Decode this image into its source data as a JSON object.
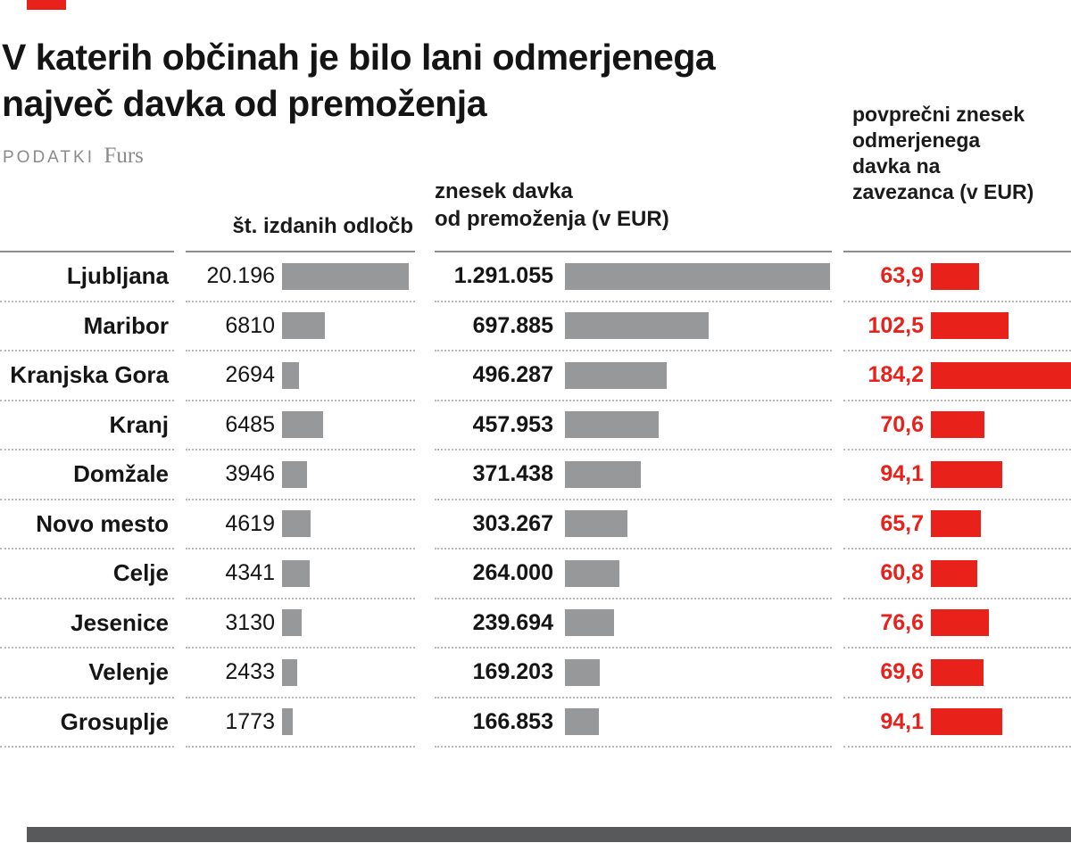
{
  "title_line1": "V katerih občinah je bilo lani odmerjenega",
  "title_line2": "največ davka od premoženja",
  "source": {
    "label": "PODATKI",
    "name": "Furs"
  },
  "headers": {
    "decisions": "št. izdanih odločb",
    "tax_line1": "znesek davka",
    "tax_line2": "od premoženja (v EUR)",
    "avg_lines": [
      "povprečni znesek",
      "odmerjenega",
      "davka na",
      "zavezanca (v EUR)"
    ]
  },
  "colors": {
    "accent_red": "#e8211a",
    "bar_gray": "#96989a",
    "footer_gray": "#58595b"
  },
  "chart_data": {
    "type": "bar",
    "title": "V katerih občinah je bilo lani odmerjenega največ davka od premoženja",
    "source": "PODATKI Furs",
    "columns": [
      "občina",
      "št. izdanih odločb",
      "znesek davka od premoženja (v EUR)",
      "povprečni znesek odmerjenega davka na zavezanca (v EUR)"
    ],
    "rows": [
      {
        "municipality": "Ljubljana",
        "decisions_label": "20.196",
        "decisions": 20196,
        "tax_label": "1.291.055",
        "tax": 1291055,
        "avg_label": "63,9",
        "avg": 63.9
      },
      {
        "municipality": "Maribor",
        "decisions_label": "6810",
        "decisions": 6810,
        "tax_label": "697.885",
        "tax": 697885,
        "avg_label": "102,5",
        "avg": 102.5
      },
      {
        "municipality": "Kranjska Gora",
        "decisions_label": "2694",
        "decisions": 2694,
        "tax_label": "496.287",
        "tax": 496287,
        "avg_label": "184,2",
        "avg": 184.2
      },
      {
        "municipality": "Kranj",
        "decisions_label": "6485",
        "decisions": 6485,
        "tax_label": "457.953",
        "tax": 457953,
        "avg_label": "70,6",
        "avg": 70.6
      },
      {
        "municipality": "Domžale",
        "decisions_label": "3946",
        "decisions": 3946,
        "tax_label": "371.438",
        "tax": 371438,
        "avg_label": "94,1",
        "avg": 94.1
      },
      {
        "municipality": "Novo mesto",
        "decisions_label": "4619",
        "decisions": 4619,
        "tax_label": "303.267",
        "tax": 303267,
        "avg_label": "65,7",
        "avg": 65.7
      },
      {
        "municipality": "Celje",
        "decisions_label": "4341",
        "decisions": 4341,
        "tax_label": "264.000",
        "tax": 264000,
        "avg_label": "60,8",
        "avg": 60.8
      },
      {
        "municipality": "Jesenice",
        "decisions_label": "3130",
        "decisions": 3130,
        "tax_label": "239.694",
        "tax": 239694,
        "avg_label": "76,6",
        "avg": 76.6
      },
      {
        "municipality": "Velenje",
        "decisions_label": "2433",
        "decisions": 2433,
        "tax_label": "169.203",
        "tax": 169203,
        "avg_label": "69,6",
        "avg": 69.6
      },
      {
        "municipality": "Grosuplje",
        "decisions_label": "1773",
        "decisions": 1773,
        "tax_label": "166.853",
        "tax": 166853,
        "avg_label": "94,1",
        "avg": 94.1
      }
    ],
    "bar_max_widths": {
      "decisions": 142,
      "tax": 297,
      "avg": 157
    },
    "legend": "none",
    "grid": "dotted row separators"
  }
}
